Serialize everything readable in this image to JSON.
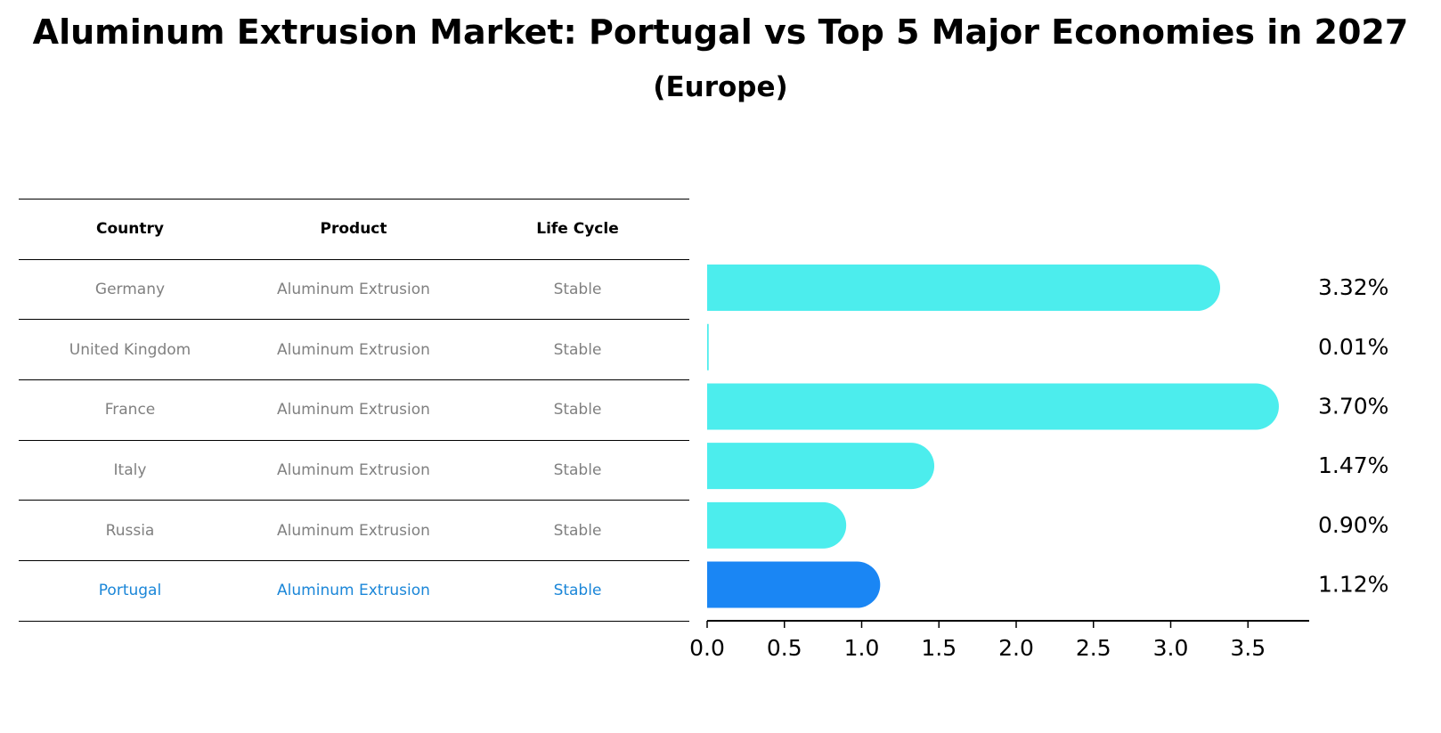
{
  "chart_data": {
    "type": "bar",
    "orientation": "horizontal",
    "title": "Aluminum Extrusion Market: Portugal vs Top 5 Major Economies in 2027",
    "subtitle": "(Europe)",
    "categories": [
      "Germany",
      "United Kingdom",
      "France",
      "Italy",
      "Russia",
      "Portugal"
    ],
    "values": [
      3.32,
      0.01,
      3.7,
      1.47,
      0.9,
      1.12
    ],
    "value_labels": [
      "3.32%",
      "0.01%",
      "3.70%",
      "1.47%",
      "0.90%",
      "1.12%"
    ],
    "highlight": "Portugal",
    "xlim": [
      0,
      3.85
    ],
    "xticks": [
      0.0,
      0.5,
      1.0,
      1.5,
      2.0,
      2.5,
      3.0,
      3.5
    ],
    "xtick_labels": [
      "0.0",
      "0.5",
      "1.0",
      "1.5",
      "2.0",
      "2.5",
      "3.0",
      "3.5"
    ],
    "colors": {
      "bar": "#4ceded",
      "highlight": "#1a86f4",
      "axis": "#000000"
    }
  },
  "table": {
    "headers": {
      "country": "Country",
      "product": "Product",
      "life_cycle": "Life Cycle"
    },
    "rows": [
      {
        "country": "Germany",
        "product": "Aluminum Extrusion",
        "life_cycle": "Stable"
      },
      {
        "country": "United Kingdom",
        "product": "Aluminum Extrusion",
        "life_cycle": "Stable"
      },
      {
        "country": "France",
        "product": "Aluminum Extrusion",
        "life_cycle": "Stable"
      },
      {
        "country": "Italy",
        "product": "Aluminum Extrusion",
        "life_cycle": "Stable"
      },
      {
        "country": "Russia",
        "product": "Aluminum Extrusion",
        "life_cycle": "Stable"
      },
      {
        "country": "Portugal",
        "product": "Aluminum Extrusion",
        "life_cycle": "Stable"
      }
    ]
  }
}
